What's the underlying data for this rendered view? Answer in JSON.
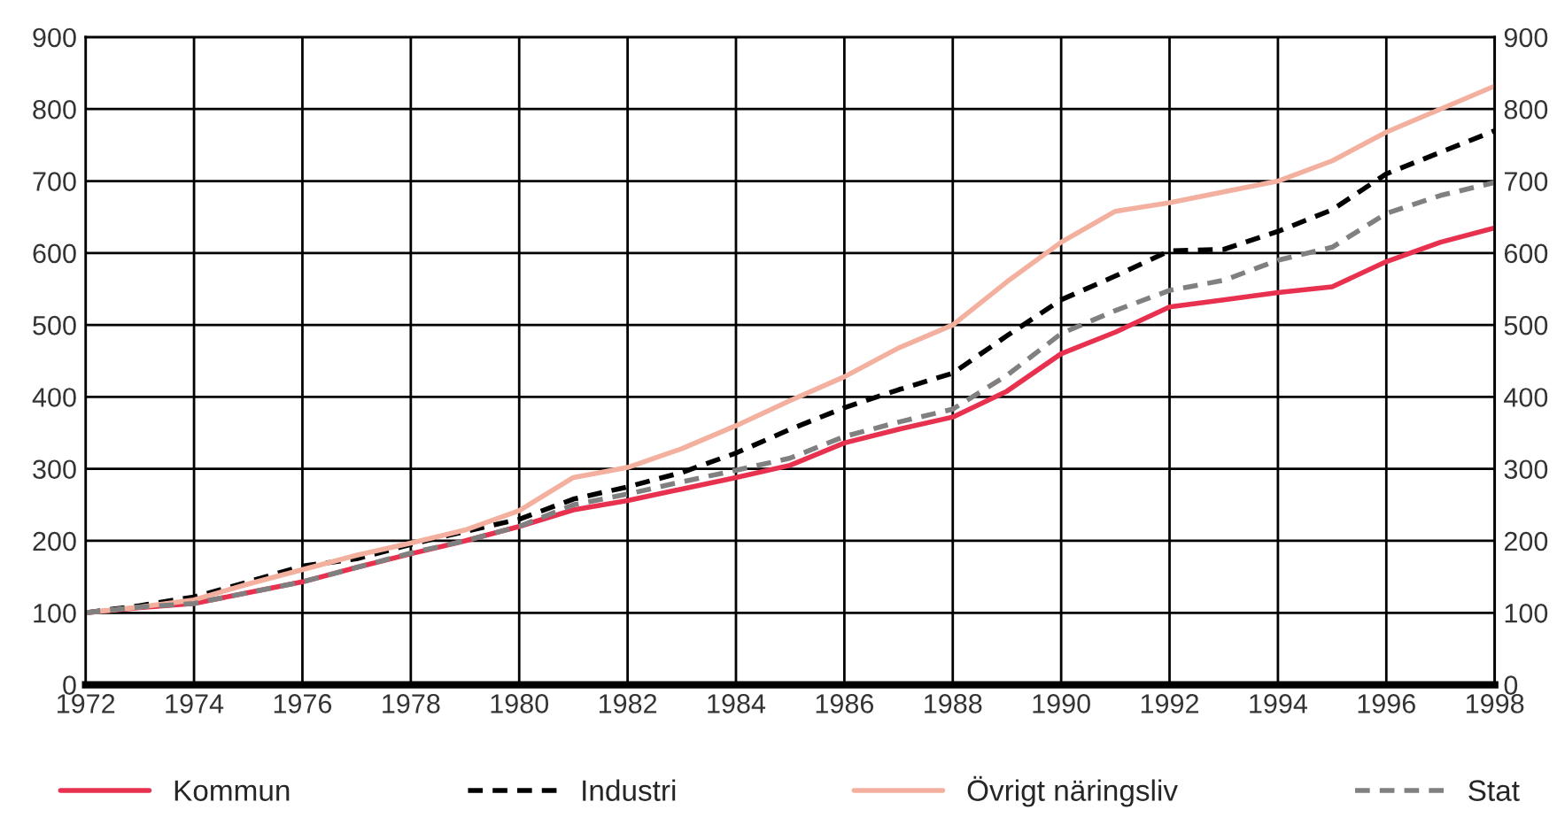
{
  "chart_data": {
    "type": "line",
    "x": [
      1972,
      1973,
      1974,
      1975,
      1976,
      1977,
      1978,
      1979,
      1980,
      1981,
      1982,
      1983,
      1984,
      1985,
      1986,
      1987,
      1988,
      1989,
      1990,
      1991,
      1992,
      1993,
      1994,
      1995,
      1996,
      1997,
      1998
    ],
    "series": [
      {
        "name": "Kommun",
        "color": "#e8304f",
        "line_style": "solid",
        "values": [
          100,
          107,
          113,
          128,
          143,
          163,
          182,
          200,
          220,
          243,
          256,
          272,
          288,
          305,
          336,
          355,
          372,
          408,
          460,
          490,
          525,
          535,
          545,
          553,
          588,
          615,
          635
        ]
      },
      {
        "name": "Industri",
        "color": "#000000",
        "line_style": "dashed",
        "values": [
          100,
          110,
          122,
          143,
          165,
          175,
          195,
          213,
          230,
          258,
          275,
          295,
          322,
          355,
          385,
          410,
          433,
          485,
          535,
          568,
          603,
          605,
          630,
          660,
          710,
          740,
          770
        ]
      },
      {
        "name": "Övrigt näringsliv",
        "color": "#f4b09e",
        "line_style": "solid",
        "values": [
          100,
          108,
          118,
          140,
          160,
          180,
          197,
          215,
          242,
          288,
          302,
          328,
          360,
          395,
          428,
          468,
          500,
          560,
          615,
          658,
          670,
          685,
          700,
          728,
          768,
          800,
          832
        ]
      },
      {
        "name": "Stat",
        "color": "#808080",
        "line_style": "dashed",
        "values": [
          100,
          108,
          113,
          128,
          143,
          163,
          183,
          200,
          220,
          250,
          265,
          282,
          298,
          315,
          345,
          365,
          383,
          430,
          488,
          520,
          548,
          562,
          590,
          608,
          655,
          680,
          698
        ]
      }
    ],
    "xlim": [
      1972,
      1998
    ],
    "xticks": [
      1972,
      1974,
      1976,
      1978,
      1980,
      1982,
      1984,
      1986,
      1988,
      1990,
      1992,
      1994,
      1996,
      1998
    ],
    "ylim": [
      0,
      900
    ],
    "yticks": [
      0,
      100,
      200,
      300,
      400,
      500,
      600,
      700,
      800,
      900
    ],
    "y2lim": [
      0,
      900
    ],
    "y2ticks": [
      0,
      100,
      200,
      300,
      400,
      500,
      600,
      700,
      800,
      900
    ],
    "grid": true,
    "legend": "bottom",
    "marker": "none"
  }
}
